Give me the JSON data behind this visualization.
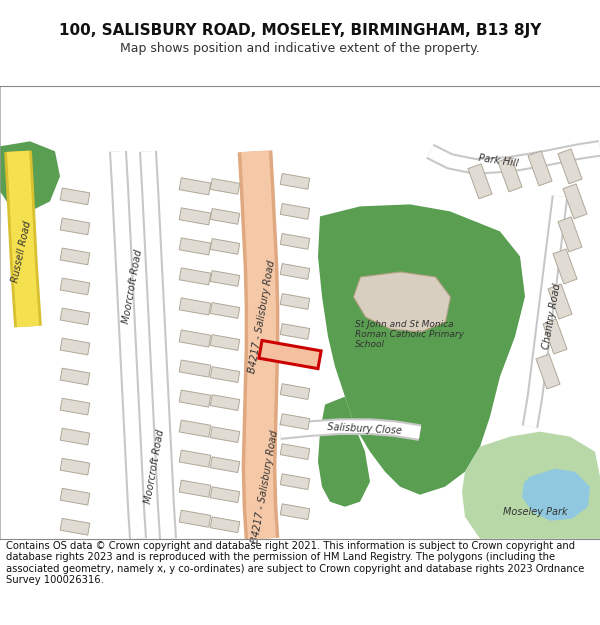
{
  "title": "100, SALISBURY ROAD, MOSELEY, BIRMINGHAM, B13 8JY",
  "subtitle": "Map shows position and indicative extent of the property.",
  "footer": "Contains OS data © Crown copyright and database right 2021. This information is subject to Crown copyright and database rights 2023 and is reproduced with the permission of HM Land Registry. The polygons (including the associated geometry, namely x, y co-ordinates) are subject to Crown copyright and database rights 2023 Ordnance Survey 100026316.",
  "map_bg": "#f2f0eb",
  "road_main_color": "#f5c9a8",
  "road_outline_color": "#e0a880",
  "road_minor_color": "#ffffff",
  "road_minor_outline": "#c8c8c8",
  "building_color": "#e0dcd4",
  "building_outline": "#b8b0a8",
  "green_color": "#5a9e52",
  "green_light_color": "#b8d8a8",
  "water_color": "#90c8e0",
  "yellow_road_color": "#f5e050",
  "yellow_road_outline": "#d8c030",
  "highlight_fill": "#f5c0a0",
  "highlight_color": "#cc0000",
  "title_fontsize": 11,
  "subtitle_fontsize": 9,
  "footer_fontsize": 7.2,
  "label_color": "#333333",
  "label_fontsize": 7
}
